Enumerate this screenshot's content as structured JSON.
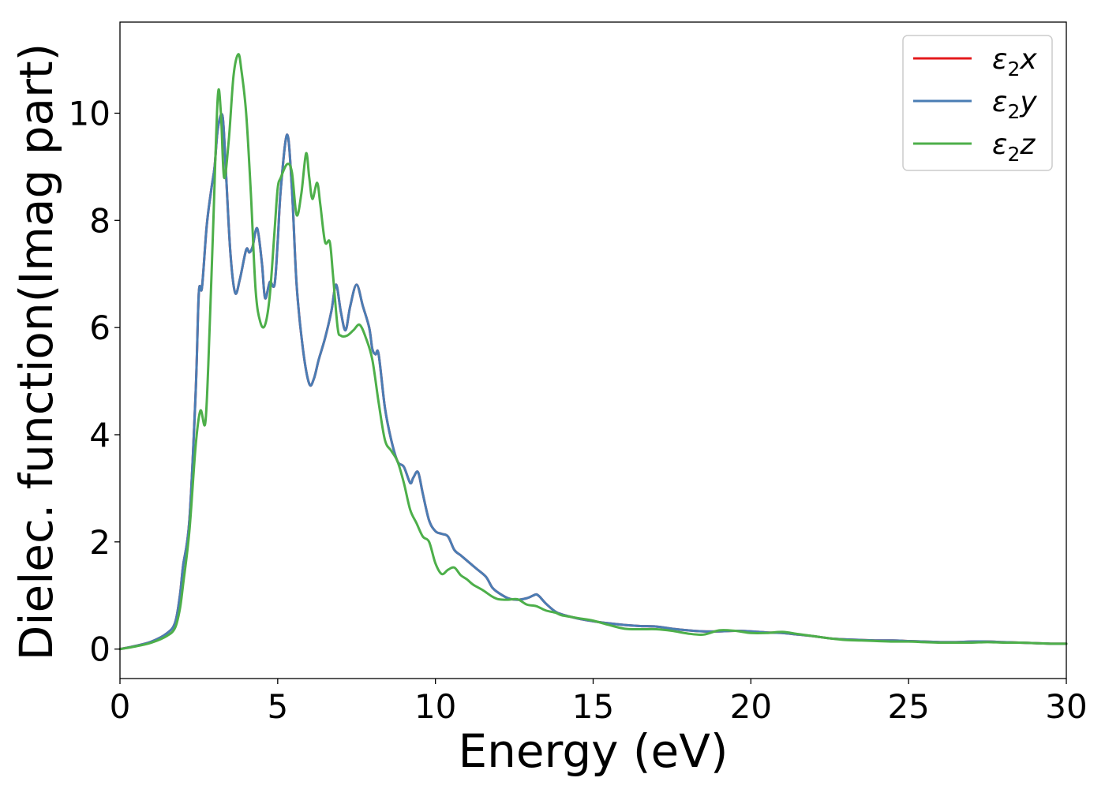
{
  "chart_data": {
    "type": "line",
    "title": "",
    "xlabel": "Energy (eV)",
    "ylabel": "Dielec. function(Imag part)",
    "xlim": [
      0,
      30
    ],
    "ylim": [
      -0.55,
      11.7
    ],
    "xticks": [
      0,
      5,
      10,
      15,
      20,
      25,
      30
    ],
    "yticks": [
      0,
      2,
      4,
      6,
      8,
      10
    ],
    "grid": false,
    "legend_position": "top-right",
    "series": [
      {
        "name": "ε₂x",
        "legend_base": "ε",
        "legend_sub": "2",
        "legend_var": "x",
        "color": "#e41a1c",
        "x": [
          0,
          0.5,
          1,
          1.5,
          1.75,
          1.9,
          2.0,
          2.2,
          2.4,
          2.5,
          2.6,
          2.75,
          2.9,
          3.0,
          3.1,
          3.25,
          3.35,
          3.5,
          3.65,
          3.8,
          4.0,
          4.1,
          4.2,
          4.35,
          4.5,
          4.6,
          4.75,
          4.9,
          5.0,
          5.1,
          5.3,
          5.45,
          5.6,
          5.8,
          6.0,
          6.15,
          6.3,
          6.5,
          6.7,
          6.85,
          7.0,
          7.15,
          7.3,
          7.5,
          7.7,
          7.9,
          8.0,
          8.1,
          8.2,
          8.4,
          8.6,
          8.8,
          9.0,
          9.2,
          9.3,
          9.45,
          9.6,
          9.8,
          10.0,
          10.2,
          10.4,
          10.6,
          10.8,
          11.0,
          11.3,
          11.6,
          11.8,
          12.0,
          12.3,
          12.6,
          12.9,
          13.1,
          13.2,
          13.3,
          13.5,
          13.8,
          14.0,
          14.3,
          14.6,
          15.0,
          15.5,
          16.0,
          16.5,
          17.0,
          17.5,
          18.0,
          18.5,
          19.0,
          19.5,
          20.0,
          20.5,
          21.0,
          21.5,
          22.0,
          22.5,
          23.0,
          23.5,
          24.0,
          24.5,
          25.0,
          25.5,
          26.0,
          26.5,
          27.0,
          27.5,
          28.0,
          28.5,
          29.0,
          29.5,
          30.0
        ],
        "y": [
          0,
          0.06,
          0.14,
          0.3,
          0.5,
          1.0,
          1.55,
          2.4,
          4.8,
          6.65,
          6.75,
          7.9,
          8.6,
          9.0,
          9.7,
          9.95,
          9.0,
          7.4,
          6.65,
          6.9,
          7.45,
          7.4,
          7.5,
          7.85,
          7.2,
          6.55,
          6.85,
          6.8,
          7.6,
          8.6,
          9.6,
          8.6,
          6.8,
          5.6,
          4.95,
          5.05,
          5.4,
          5.8,
          6.3,
          6.8,
          6.3,
          5.95,
          6.4,
          6.8,
          6.4,
          6.0,
          5.6,
          5.5,
          5.5,
          4.5,
          3.9,
          3.5,
          3.4,
          3.1,
          3.2,
          3.3,
          2.9,
          2.4,
          2.2,
          2.15,
          2.1,
          1.85,
          1.75,
          1.65,
          1.5,
          1.35,
          1.15,
          1.05,
          0.95,
          0.92,
          0.95,
          1.0,
          1.02,
          0.98,
          0.85,
          0.7,
          0.65,
          0.6,
          0.56,
          0.52,
          0.48,
          0.45,
          0.43,
          0.42,
          0.38,
          0.35,
          0.33,
          0.33,
          0.34,
          0.33,
          0.31,
          0.3,
          0.27,
          0.24,
          0.2,
          0.18,
          0.17,
          0.16,
          0.16,
          0.15,
          0.14,
          0.13,
          0.13,
          0.14,
          0.14,
          0.13,
          0.12,
          0.11,
          0.1,
          0.1
        ]
      },
      {
        "name": "ε₂y",
        "legend_base": "ε",
        "legend_sub": "2",
        "legend_var": "y",
        "color": "#4a7db4",
        "x": [
          0,
          0.5,
          1,
          1.5,
          1.75,
          1.9,
          2.0,
          2.2,
          2.4,
          2.5,
          2.6,
          2.75,
          2.9,
          3.0,
          3.1,
          3.25,
          3.35,
          3.5,
          3.65,
          3.8,
          4.0,
          4.1,
          4.2,
          4.35,
          4.5,
          4.6,
          4.75,
          4.9,
          5.0,
          5.1,
          5.3,
          5.45,
          5.6,
          5.8,
          6.0,
          6.15,
          6.3,
          6.5,
          6.7,
          6.85,
          7.0,
          7.15,
          7.3,
          7.5,
          7.7,
          7.9,
          8.0,
          8.1,
          8.2,
          8.4,
          8.6,
          8.8,
          9.0,
          9.2,
          9.3,
          9.45,
          9.6,
          9.8,
          10.0,
          10.2,
          10.4,
          10.6,
          10.8,
          11.0,
          11.3,
          11.6,
          11.8,
          12.0,
          12.3,
          12.6,
          12.9,
          13.1,
          13.2,
          13.3,
          13.5,
          13.8,
          14.0,
          14.3,
          14.6,
          15.0,
          15.5,
          16.0,
          16.5,
          17.0,
          17.5,
          18.0,
          18.5,
          19.0,
          19.5,
          20.0,
          20.5,
          21.0,
          21.5,
          22.0,
          22.5,
          23.0,
          23.5,
          24.0,
          24.5,
          25.0,
          25.5,
          26.0,
          26.5,
          27.0,
          27.5,
          28.0,
          28.5,
          29.0,
          29.5,
          30.0
        ],
        "y": [
          0,
          0.06,
          0.14,
          0.3,
          0.5,
          1.0,
          1.55,
          2.4,
          4.8,
          6.65,
          6.75,
          7.9,
          8.6,
          9.0,
          9.7,
          9.95,
          9.0,
          7.4,
          6.65,
          6.9,
          7.45,
          7.4,
          7.5,
          7.85,
          7.2,
          6.55,
          6.85,
          6.8,
          7.6,
          8.6,
          9.6,
          8.6,
          6.8,
          5.6,
          4.95,
          5.05,
          5.4,
          5.8,
          6.3,
          6.8,
          6.3,
          5.95,
          6.4,
          6.8,
          6.4,
          6.0,
          5.6,
          5.5,
          5.5,
          4.5,
          3.9,
          3.5,
          3.4,
          3.1,
          3.2,
          3.3,
          2.9,
          2.4,
          2.2,
          2.15,
          2.1,
          1.85,
          1.75,
          1.65,
          1.5,
          1.35,
          1.15,
          1.05,
          0.95,
          0.92,
          0.95,
          1.0,
          1.02,
          0.98,
          0.85,
          0.7,
          0.65,
          0.6,
          0.56,
          0.52,
          0.48,
          0.45,
          0.43,
          0.42,
          0.38,
          0.35,
          0.33,
          0.33,
          0.34,
          0.33,
          0.31,
          0.3,
          0.27,
          0.24,
          0.2,
          0.18,
          0.17,
          0.16,
          0.16,
          0.15,
          0.14,
          0.13,
          0.13,
          0.14,
          0.14,
          0.13,
          0.12,
          0.11,
          0.1,
          0.1
        ]
      },
      {
        "name": "ε₂z",
        "legend_base": "ε",
        "legend_sub": "2",
        "legend_var": "z",
        "color": "#4daf4a",
        "x": [
          0,
          0.5,
          1,
          1.5,
          1.75,
          1.9,
          2.0,
          2.2,
          2.4,
          2.55,
          2.7,
          2.8,
          2.95,
          3.1,
          3.2,
          3.3,
          3.45,
          3.6,
          3.75,
          3.85,
          4.0,
          4.15,
          4.3,
          4.45,
          4.6,
          4.75,
          4.9,
          5.0,
          5.1,
          5.3,
          5.45,
          5.6,
          5.75,
          5.9,
          6.0,
          6.1,
          6.25,
          6.35,
          6.5,
          6.65,
          6.75,
          6.9,
          7.0,
          7.2,
          7.4,
          7.6,
          7.8,
          8.0,
          8.2,
          8.4,
          8.6,
          8.8,
          9.0,
          9.2,
          9.4,
          9.6,
          9.8,
          10.0,
          10.2,
          10.4,
          10.6,
          10.8,
          11.0,
          11.2,
          11.5,
          11.8,
          12.0,
          12.3,
          12.6,
          12.9,
          13.2,
          13.5,
          13.8,
          14.0,
          14.3,
          14.6,
          15.0,
          15.5,
          16.0,
          16.5,
          17.0,
          17.5,
          18.0,
          18.5,
          19.0,
          19.5,
          20.0,
          20.5,
          21.0,
          21.5,
          22.0,
          22.5,
          23.0,
          23.5,
          24.0,
          24.5,
          25.0,
          25.5,
          26.0,
          26.5,
          27.0,
          27.5,
          28.0,
          28.5,
          29.0,
          29.5,
          30.0
        ],
        "y": [
          0,
          0.05,
          0.12,
          0.25,
          0.4,
          0.75,
          1.2,
          2.2,
          3.8,
          4.45,
          4.2,
          5.3,
          7.8,
          10.3,
          10.0,
          8.8,
          9.5,
          10.7,
          11.1,
          10.8,
          10.0,
          8.5,
          6.7,
          6.1,
          6.05,
          6.6,
          7.8,
          8.6,
          8.8,
          9.05,
          8.9,
          8.1,
          8.5,
          9.25,
          8.8,
          8.4,
          8.7,
          8.3,
          7.6,
          7.6,
          7.0,
          6.0,
          5.85,
          5.85,
          5.95,
          6.05,
          5.8,
          5.4,
          4.6,
          3.9,
          3.7,
          3.5,
          3.1,
          2.6,
          2.35,
          2.1,
          2.0,
          1.6,
          1.4,
          1.48,
          1.52,
          1.38,
          1.3,
          1.2,
          1.1,
          0.98,
          0.93,
          0.92,
          0.93,
          0.83,
          0.8,
          0.72,
          0.68,
          0.63,
          0.6,
          0.57,
          0.53,
          0.45,
          0.38,
          0.37,
          0.37,
          0.34,
          0.29,
          0.27,
          0.35,
          0.34,
          0.3,
          0.3,
          0.32,
          0.28,
          0.24,
          0.2,
          0.17,
          0.16,
          0.15,
          0.14,
          0.14,
          0.13,
          0.12,
          0.12,
          0.12,
          0.13,
          0.12,
          0.12,
          0.11,
          0.1,
          0.1
        ]
      }
    ]
  }
}
